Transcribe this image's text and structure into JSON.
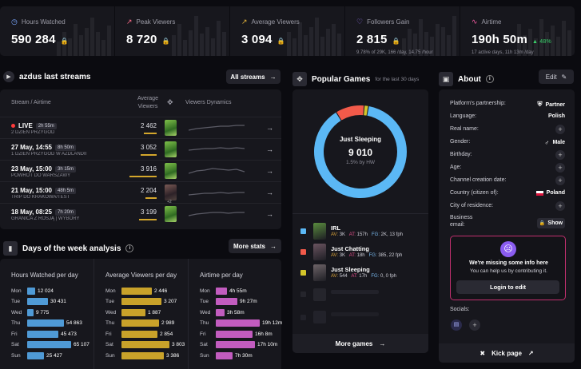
{
  "stats": [
    {
      "label": "Hours Watched",
      "value": "590 284",
      "sub": "",
      "icon": "clock-icon",
      "color": "#7aa7ff"
    },
    {
      "label": "Peak Viewers",
      "value": "8 720",
      "sub": "",
      "icon": "chart-icon",
      "color": "#ff6b8a"
    },
    {
      "label": "Average Viewers",
      "value": "3 094",
      "sub": "",
      "icon": "chart-icon",
      "color": "#e4b33a"
    },
    {
      "label": "Followers Gain",
      "value": "2 815",
      "sub": "9.78% of 29K, 166 /day, 14.75 /hour",
      "icon": "heart-icon",
      "color": "#9b7bff"
    },
    {
      "label": "Airtime",
      "value": "190h 50m",
      "sub": "17 active days, 11h 13m /day",
      "icon": "wave-icon",
      "color": "#ff5ea8",
      "change": "48%"
    }
  ],
  "streams": {
    "title": "azdus last streams",
    "all_button": "All streams",
    "col_stream": "Stream / Airtime",
    "col_avg": "Average Viewers",
    "col_dyn": "Viewers Dynamics",
    "rows": [
      {
        "title": "LIVE",
        "live": true,
        "duration": "2h 55m",
        "subtitle": "2 DZIEŃ PRZYGÓD",
        "viewers": "2 462",
        "bar": 0.46,
        "thumb": "green"
      },
      {
        "title": "27 May, 14:55",
        "live": false,
        "duration": "8h 50m",
        "subtitle": "1 DZIEŃ PRZYGOD W AZDLANDII",
        "viewers": "3 052",
        "bar": 0.6,
        "thumb": "green"
      },
      {
        "title": "23 May, 15:00",
        "live": false,
        "duration": "3h 15m",
        "subtitle": "POWRÓT DO WARSZAWY",
        "viewers": "3 916",
        "bar": 1.0,
        "thumb": "green"
      },
      {
        "title": "21 May, 15:00",
        "live": false,
        "duration": "48h 5m",
        "subtitle": "TRIP DO KRAKOWA/TEST",
        "viewers": "2 204",
        "bar": 0.42,
        "thumb": "dark",
        "extra": "+2"
      },
      {
        "title": "18 May, 08:25",
        "live": false,
        "duration": "7h 20m",
        "subtitle": "GRANICA Z ROSJĄ | WYBORY",
        "viewers": "3 199",
        "bar": 0.64,
        "thumb": "green"
      }
    ]
  },
  "days": {
    "title": "Days of the week analysis",
    "more_button": "More stats",
    "columns": [
      {
        "title": "Hours Watched per day",
        "color": "#4f9ad6",
        "rows": [
          {
            "d": "Mon",
            "v": "12 024",
            "f": 0.18
          },
          {
            "d": "Tue",
            "v": "30 431",
            "f": 0.47
          },
          {
            "d": "Wed",
            "v": "9 775",
            "f": 0.15
          },
          {
            "d": "Thu",
            "v": "54 863",
            "f": 0.84
          },
          {
            "d": "Fri",
            "v": "45 473",
            "f": 0.7
          },
          {
            "d": "Sat",
            "v": "65 107",
            "f": 1.0
          },
          {
            "d": "Sun",
            "v": "25 427",
            "f": 0.39
          }
        ]
      },
      {
        "title": "Average Viewers per day",
        "color": "#c9a22a",
        "rows": [
          {
            "d": "Mon",
            "v": "2 446",
            "f": 0.64
          },
          {
            "d": "Tue",
            "v": "3 207",
            "f": 0.84
          },
          {
            "d": "Wed",
            "v": "1 887",
            "f": 0.5
          },
          {
            "d": "Thu",
            "v": "2 989",
            "f": 0.79
          },
          {
            "d": "Fri",
            "v": "2 854",
            "f": 0.75
          },
          {
            "d": "Sat",
            "v": "3 803",
            "f": 1.0
          },
          {
            "d": "Sun",
            "v": "3 386",
            "f": 0.89
          }
        ]
      },
      {
        "title": "Airtime per day",
        "color": "#c25cbf",
        "rows": [
          {
            "d": "Mon",
            "v": "4h 55m",
            "f": 0.25
          },
          {
            "d": "Tue",
            "v": "9h 27m",
            "f": 0.49
          },
          {
            "d": "Wed",
            "v": "3h 58m",
            "f": 0.2
          },
          {
            "d": "Thu",
            "v": "19h 12m",
            "f": 1.0
          },
          {
            "d": "Fri",
            "v": "16h 8m",
            "f": 0.84
          },
          {
            "d": "Sat",
            "v": "17h 10m",
            "f": 0.89
          },
          {
            "d": "Sun",
            "v": "7h 30m",
            "f": 0.39
          }
        ]
      }
    ]
  },
  "games": {
    "title": "Popular Games",
    "period": "for the last 30 days",
    "center_name": "Just Sleeping",
    "center_value": "9 010",
    "center_sub": "1.5% by HW",
    "segments": [
      {
        "name": "IRL",
        "fraction": 0.88,
        "color": "#5bb8f5"
      },
      {
        "name": "Just Chatting",
        "fraction": 0.1,
        "color": "#f25a4a"
      },
      {
        "name": "Just Sleeping",
        "fraction": 0.015,
        "color": "#d4c52a"
      }
    ],
    "list": [
      {
        "name": "IRL",
        "av": "3K",
        "at": "157h",
        "fg": "2K, 13 fph",
        "color": "#5bb8f5",
        "thumb": "#5a8c3e"
      },
      {
        "name": "Just Chatting",
        "av": "3K",
        "at": "18h",
        "fg": "385, 22 fph",
        "color": "#f25a4a",
        "thumb": "#6b5460"
      },
      {
        "name": "Just Sleeping",
        "av": "544",
        "at": "17h",
        "fg": "0, 0 fph",
        "color": "#d4c52a",
        "thumb": "#6e6468"
      }
    ],
    "more_button": "More games"
  },
  "about": {
    "title": "About",
    "edit": "Edit",
    "rows": [
      {
        "k": "Platform's partnership:",
        "v": "Partner",
        "icon": "badge-icon"
      },
      {
        "k": "Language:",
        "v": "Polish"
      },
      {
        "k": "Real name:",
        "v": ""
      },
      {
        "k": "Gender:",
        "v": "Male",
        "icon": "male-icon"
      },
      {
        "k": "Birthday:",
        "v": ""
      },
      {
        "k": "Age:",
        "v": ""
      },
      {
        "k": "Channel creation date:",
        "v": ""
      },
      {
        "k": "Country (citizen of):",
        "v": "Poland",
        "icon": "flag-icon"
      },
      {
        "k": "City of residence:",
        "v": ""
      }
    ],
    "email_label": "Business email:",
    "show": "Show",
    "missing_title": "We're missing some info here",
    "missing_sub": "You can help us by contributing it.",
    "login_button": "Login to edit",
    "socials": "Socials:",
    "kick_button": "Kick page"
  }
}
